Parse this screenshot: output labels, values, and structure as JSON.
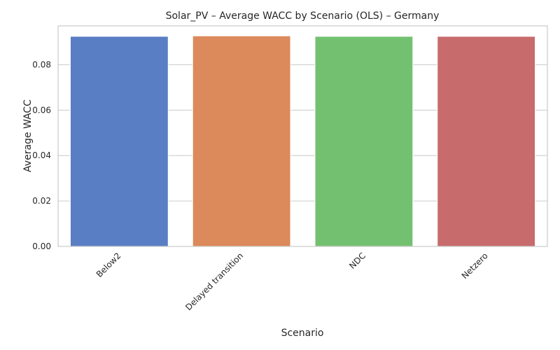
{
  "chart_data": {
    "type": "bar",
    "title": "Solar_PV – Average WACC by Scenario (OLS) – Germany",
    "xlabel": "Scenario",
    "ylabel": "Average WACC",
    "categories": [
      "Below2",
      "Delayed transition",
      "NDC",
      "Netzero"
    ],
    "values": [
      0.0925,
      0.0927,
      0.0925,
      0.0925
    ],
    "colors": [
      "#5a7ec4",
      "#dc895b",
      "#73c170",
      "#c76b6c"
    ],
    "ylim": [
      0,
      0.0971
    ],
    "yticks": [
      0.0,
      0.02,
      0.04,
      0.06,
      0.08
    ],
    "ytick_labels": [
      "0.00",
      "0.02",
      "0.04",
      "0.06",
      "0.08"
    ],
    "grid": "horizontal",
    "legend": "none"
  }
}
